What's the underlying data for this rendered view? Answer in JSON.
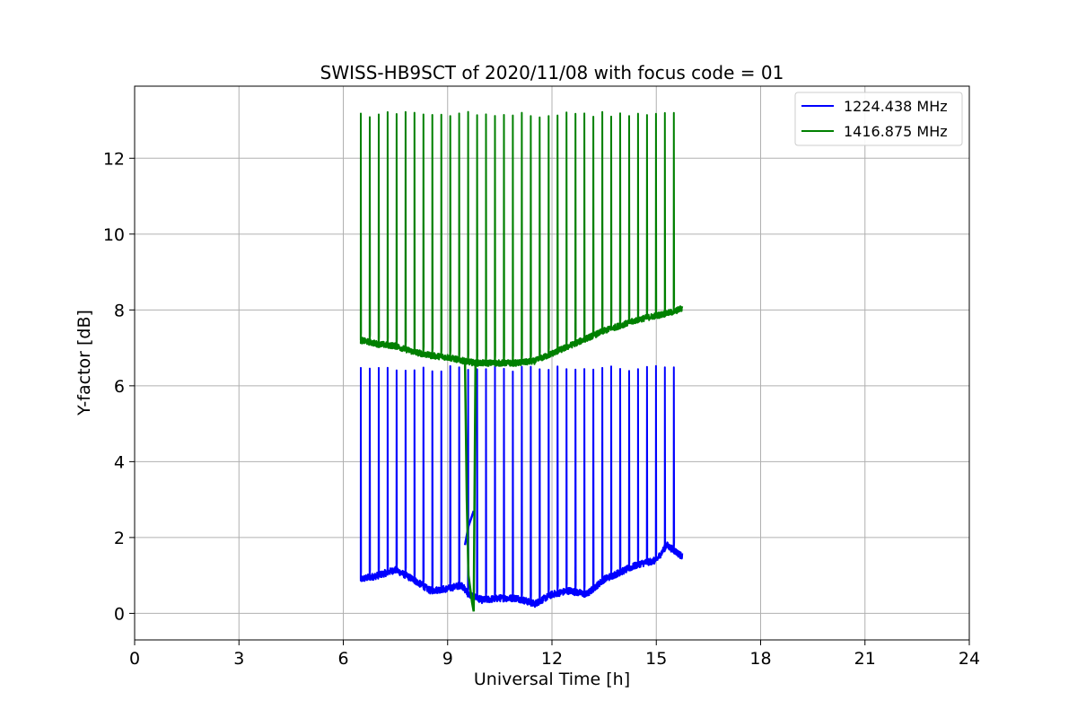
{
  "chart_data": {
    "type": "line",
    "title": "SWISS-HB9SCT of 2020/11/08 with focus code = 01",
    "xlabel": "Universal Time [h]",
    "ylabel": "Y-factor [dB]",
    "xlim": [
      0,
      24
    ],
    "ylim": [
      -0.7,
      13.9
    ],
    "xticks": [
      0,
      3,
      6,
      9,
      12,
      15,
      18,
      21,
      24
    ],
    "yticks": [
      0,
      2,
      4,
      6,
      8,
      10,
      12
    ],
    "grid": true,
    "legend_position": "top-right",
    "series": [
      {
        "name": "1224.438 MHz",
        "color": "#0000ff",
        "baseline": [
          [
            6.5,
            0.9
          ],
          [
            7.0,
            1.0
          ],
          [
            7.5,
            1.15
          ],
          [
            8.0,
            0.9
          ],
          [
            8.5,
            0.6
          ],
          [
            9.0,
            0.65
          ],
          [
            9.4,
            0.75
          ],
          [
            9.6,
            0.5
          ],
          [
            10.0,
            0.35
          ],
          [
            10.5,
            0.4
          ],
          [
            11.0,
            0.4
          ],
          [
            11.5,
            0.25
          ],
          [
            12.0,
            0.5
          ],
          [
            12.5,
            0.6
          ],
          [
            13.0,
            0.5
          ],
          [
            13.5,
            0.9
          ],
          [
            14.0,
            1.1
          ],
          [
            14.5,
            1.3
          ],
          [
            15.0,
            1.4
          ],
          [
            15.3,
            1.8
          ],
          [
            15.75,
            1.5
          ]
        ],
        "baseline_noise": 0.09,
        "spikes": {
          "peak": 6.45,
          "start": 6.5,
          "end": 15.5,
          "count": 36
        },
        "extra_segment": [
          [
            9.5,
            1.8
          ],
          [
            9.6,
            2.3
          ],
          [
            9.75,
            2.7
          ]
        ]
      },
      {
        "name": "1416.875 MHz",
        "color": "#008000",
        "baseline": [
          [
            6.5,
            7.2
          ],
          [
            7.0,
            7.1
          ],
          [
            7.5,
            7.05
          ],
          [
            8.0,
            6.9
          ],
          [
            8.5,
            6.8
          ],
          [
            9.0,
            6.75
          ],
          [
            9.5,
            6.65
          ],
          [
            9.8,
            6.6
          ],
          [
            10.0,
            6.6
          ],
          [
            10.5,
            6.6
          ],
          [
            11.0,
            6.6
          ],
          [
            11.5,
            6.65
          ],
          [
            12.0,
            6.85
          ],
          [
            12.5,
            7.05
          ],
          [
            13.0,
            7.25
          ],
          [
            13.5,
            7.45
          ],
          [
            14.0,
            7.6
          ],
          [
            14.5,
            7.75
          ],
          [
            15.0,
            7.85
          ],
          [
            15.5,
            7.95
          ],
          [
            15.75,
            8.05
          ]
        ],
        "baseline_noise": 0.08,
        "spikes": {
          "peak": 13.15,
          "start": 6.5,
          "end": 15.5,
          "count": 36
        },
        "drop_segment": [
          [
            9.5,
            6.65
          ],
          [
            9.55,
            3.0
          ],
          [
            9.6,
            1.0
          ],
          [
            9.7,
            0.3
          ],
          [
            9.75,
            0.05
          ],
          [
            9.8,
            6.6
          ]
        ]
      }
    ]
  }
}
